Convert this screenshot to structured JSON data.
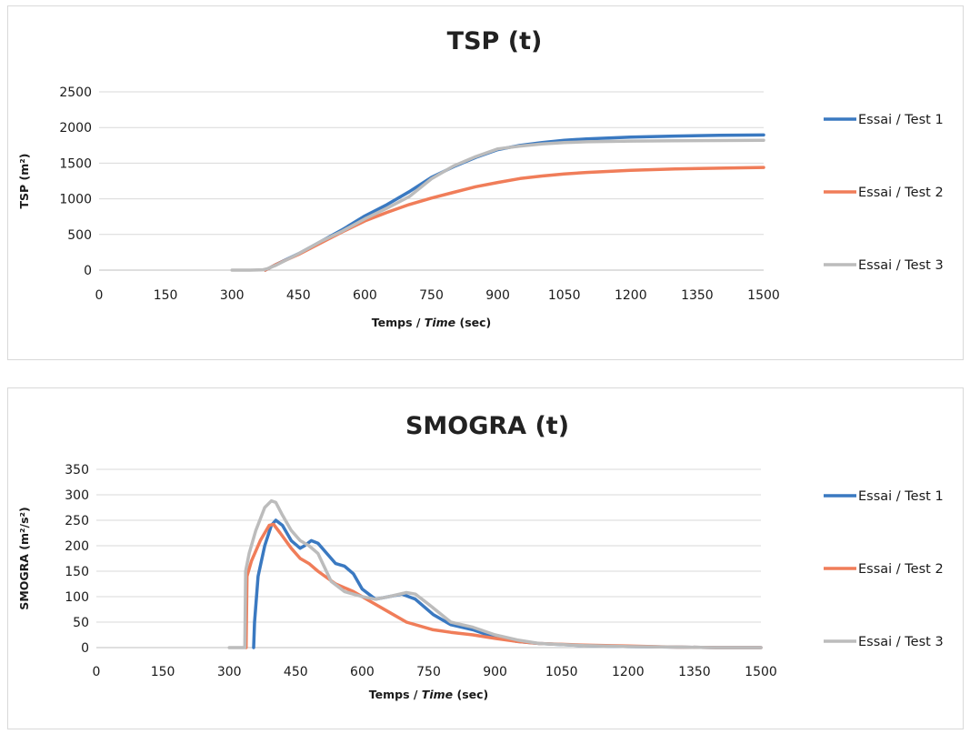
{
  "colors": {
    "series1": "#3a79c1",
    "series2": "#f07d59",
    "series3": "#bcbcbc",
    "gridline": "#d9d9d9",
    "axis": "#bfbfbf"
  },
  "chart_data": [
    {
      "type": "line",
      "title": "TSP (t)",
      "xlabel": "Temps / Time (sec)",
      "xlabel_parts": [
        "Temps / ",
        "Time",
        " (sec)"
      ],
      "ylabel": "TSP (m²)",
      "xlim": [
        0,
        1500
      ],
      "ylim": [
        0,
        2500
      ],
      "xticks": [
        0,
        150,
        300,
        450,
        600,
        750,
        900,
        1050,
        1200,
        1350,
        1500
      ],
      "yticks": [
        0,
        500,
        1000,
        1500,
        2000,
        2500
      ],
      "grid": true,
      "legend_position": "right",
      "series": [
        {
          "name": "Essai / Test 1",
          "color": "#3a79c1",
          "x": [
            375,
            400,
            450,
            500,
            550,
            600,
            650,
            700,
            750,
            800,
            850,
            900,
            950,
            1000,
            1050,
            1100,
            1200,
            1300,
            1400,
            1500
          ],
          "y": [
            0,
            80,
            230,
            400,
            570,
            760,
            920,
            1100,
            1300,
            1450,
            1580,
            1690,
            1750,
            1790,
            1820,
            1840,
            1865,
            1880,
            1890,
            1895
          ]
        },
        {
          "name": "Essai / Test 2",
          "color": "#f07d59",
          "x": [
            375,
            400,
            450,
            500,
            550,
            600,
            650,
            700,
            750,
            800,
            850,
            900,
            950,
            1000,
            1050,
            1100,
            1200,
            1300,
            1400,
            1500
          ],
          "y": [
            0,
            80,
            220,
            380,
            540,
            690,
            810,
            920,
            1010,
            1090,
            1170,
            1230,
            1285,
            1320,
            1350,
            1370,
            1400,
            1420,
            1430,
            1440
          ]
        },
        {
          "name": "Essai / Test 3",
          "color": "#bcbcbc",
          "x": [
            300,
            340,
            370,
            380,
            400,
            450,
            500,
            550,
            600,
            650,
            700,
            750,
            800,
            850,
            900,
            950,
            1000,
            1050,
            1100,
            1200,
            1300,
            1400,
            1500
          ],
          "y": [
            0,
            0,
            5,
            20,
            70,
            230,
            400,
            550,
            720,
            870,
            1030,
            1280,
            1460,
            1590,
            1700,
            1740,
            1770,
            1790,
            1800,
            1810,
            1815,
            1818,
            1820
          ]
        }
      ]
    },
    {
      "type": "line",
      "title": "SMOGRA (t)",
      "xlabel": "Temps / Time (sec)",
      "xlabel_parts": [
        "Temps / ",
        "Time",
        " (sec)"
      ],
      "ylabel": "SMOGRA (m²/s²)",
      "xlim": [
        0,
        1500
      ],
      "ylim": [
        0,
        350
      ],
      "xticks": [
        0,
        150,
        300,
        450,
        600,
        750,
        900,
        1050,
        1200,
        1350,
        1500
      ],
      "yticks": [
        0,
        50,
        100,
        150,
        200,
        250,
        300,
        350
      ],
      "grid": true,
      "legend_position": "right",
      "series": [
        {
          "name": "Essai / Test 1",
          "color": "#3a79c1",
          "x": [
            355,
            357,
            365,
            380,
            395,
            405,
            420,
            440,
            460,
            470,
            485,
            500,
            520,
            540,
            560,
            580,
            600,
            630,
            660,
            690,
            720,
            760,
            800,
            850,
            900,
            950,
            1000,
            1100,
            1200,
            1300,
            1400,
            1500
          ],
          "y": [
            0,
            50,
            140,
            200,
            240,
            250,
            240,
            210,
            195,
            200,
            210,
            205,
            185,
            165,
            160,
            145,
            115,
            95,
            100,
            105,
            95,
            65,
            45,
            35,
            20,
            12,
            8,
            4,
            2,
            1,
            0,
            0
          ]
        },
        {
          "name": "Essai / Test 2",
          "color": "#f07d59",
          "x": [
            338,
            340,
            350,
            370,
            390,
            400,
            415,
            440,
            460,
            480,
            500,
            540,
            580,
            620,
            660,
            700,
            760,
            800,
            850,
            900,
            950,
            1000,
            1100,
            1200,
            1300,
            1400,
            1500
          ],
          "y": [
            0,
            140,
            170,
            210,
            240,
            242,
            225,
            195,
            175,
            165,
            150,
            125,
            110,
            90,
            70,
            50,
            35,
            30,
            25,
            18,
            12,
            8,
            5,
            3,
            1,
            0,
            0
          ]
        },
        {
          "name": "Essai / Test 3",
          "color": "#bcbcbc",
          "x": [
            300,
            335,
            337,
            345,
            360,
            380,
            395,
            405,
            420,
            440,
            460,
            480,
            500,
            530,
            560,
            600,
            630,
            660,
            700,
            720,
            750,
            800,
            850,
            900,
            950,
            1000,
            1100,
            1200,
            1300,
            1400,
            1500
          ],
          "y": [
            0,
            0,
            150,
            185,
            230,
            275,
            288,
            285,
            260,
            230,
            210,
            200,
            185,
            130,
            110,
            100,
            95,
            100,
            108,
            105,
            85,
            50,
            40,
            25,
            15,
            8,
            4,
            2,
            1,
            0,
            0
          ]
        }
      ]
    }
  ]
}
